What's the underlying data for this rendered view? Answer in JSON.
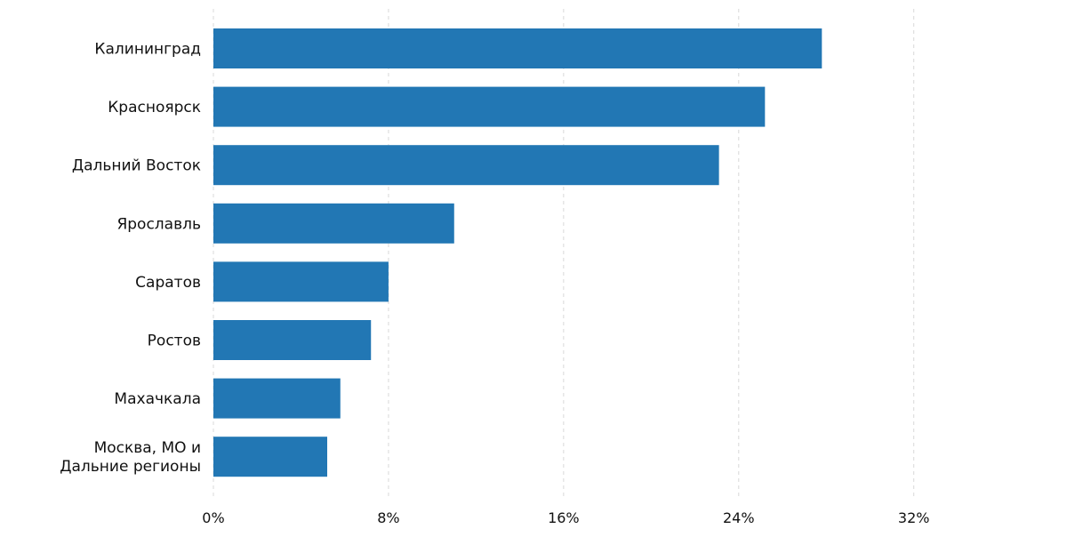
{
  "chart_data": {
    "type": "bar",
    "orientation": "horizontal",
    "categories": [
      [
        "Калининград"
      ],
      [
        "Красноярск"
      ],
      [
        "Дальний Восток"
      ],
      [
        "Ярославль"
      ],
      [
        "Саратов"
      ],
      [
        "Ростов"
      ],
      [
        "Махачкала"
      ],
      [
        "Москва, МО и",
        "Дальние регионы"
      ]
    ],
    "values": [
      27.8,
      25.2,
      23.1,
      11.0,
      8.0,
      7.2,
      5.8,
      5.2
    ],
    "xlim": [
      0,
      39
    ],
    "xticks": [
      0,
      8,
      16,
      24,
      32
    ],
    "tick_labels": [
      "0%",
      "8%",
      "16%",
      "24%",
      "32%"
    ],
    "bar_color": "#2277b4",
    "grid": "vertical dashed",
    "title": "",
    "xlabel": "",
    "ylabel": ""
  }
}
